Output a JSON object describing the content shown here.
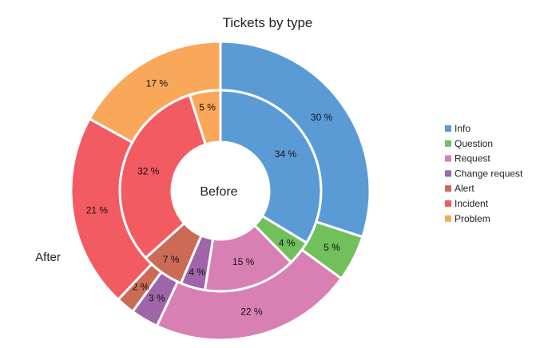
{
  "chart_data": {
    "type": "pie",
    "title": "Tickets by type",
    "categories": [
      "Info",
      "Question",
      "Request",
      "Change request",
      "Alert",
      "Incident",
      "Problem"
    ],
    "colors": [
      "#5b9bd5",
      "#72c05b",
      "#d87fb4",
      "#a064a8",
      "#cc6b55",
      "#f25b62",
      "#f9a85a"
    ],
    "series": [
      {
        "name": "Before",
        "values": [
          34,
          4,
          15,
          4,
          7,
          32,
          5
        ],
        "labels": [
          "34 %",
          "4 %",
          "15 %",
          "4 %",
          "7 %",
          "32 %",
          "5 %"
        ]
      },
      {
        "name": "After",
        "values": [
          30,
          5,
          22,
          3,
          2,
          21,
          17
        ],
        "labels": [
          "30 %",
          "5 %",
          "22 %",
          "3 %",
          "2 %",
          "21 %",
          "17 %"
        ]
      }
    ],
    "legend": {
      "position": "right"
    }
  }
}
